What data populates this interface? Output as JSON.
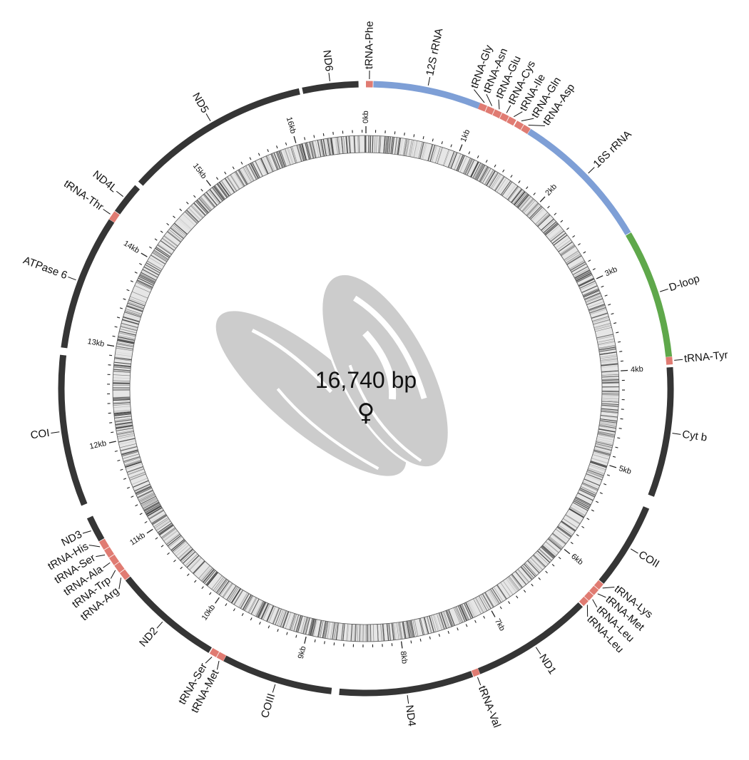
{
  "genome": {
    "length_label": "16,740 bp",
    "length_bp": 16740,
    "sex_symbol": "♀",
    "organism_icon": "mussel-silhouette-icon"
  },
  "colors": {
    "protein": "#353535",
    "rRNA": "#7e9fd6",
    "tRNA": "#e07b72",
    "control": "#5fa84b",
    "silhouette": "#cccccc"
  },
  "kb_ticks": [
    "0kb",
    "1kb",
    "2kb",
    "3kb",
    "4kb",
    "5kb",
    "6kb",
    "7kb",
    "8kb",
    "9kb",
    "10kb",
    "11kb",
    "12kb",
    "13kb",
    "14kb",
    "15kb",
    "16kb"
  ],
  "features": [
    {
      "name": "tRNA-Phe",
      "type": "tRNA",
      "start": 0,
      "end": 60
    },
    {
      "name": "12S rRNA",
      "type": "rRNA",
      "start": 65,
      "end": 1014
    },
    {
      "name": "tRNA-Gly",
      "type": "tRNA",
      "start": 1014,
      "end": 1079
    },
    {
      "name": "tRNA-Asn",
      "type": "tRNA",
      "start": 1084,
      "end": 1149
    },
    {
      "name": "tRNA-Glu",
      "type": "tRNA",
      "start": 1154,
      "end": 1219
    },
    {
      "name": "tRNA-Cys",
      "type": "tRNA",
      "start": 1224,
      "end": 1289
    },
    {
      "name": "tRNA-Ile",
      "type": "tRNA",
      "start": 1294,
      "end": 1359
    },
    {
      "name": "tRNA-Gln",
      "type": "tRNA",
      "start": 1369,
      "end": 1434
    },
    {
      "name": "tRNA-Asp",
      "type": "tRNA",
      "start": 1439,
      "end": 1504
    },
    {
      "name": "16S rRNA",
      "type": "rRNA",
      "start": 1507,
      "end": 2762
    },
    {
      "name": "D-loop",
      "type": "control",
      "start": 2767,
      "end": 3906
    },
    {
      "name": "tRNA-Tyr",
      "type": "tRNA",
      "start": 3908,
      "end": 3975
    },
    {
      "name": "Cyt b",
      "type": "protein",
      "start": 3999,
      "end": 5143
    },
    {
      "name": "COII",
      "type": "protein",
      "start": 5255,
      "end": 6017
    },
    {
      "name": "tRNA-Lys",
      "type": "tRNA",
      "start": 6022,
      "end": 6082
    },
    {
      "name": "tRNA-Met",
      "type": "tRNA",
      "start": 6087,
      "end": 6147
    },
    {
      "name": "tRNA-Leu",
      "type": "tRNA",
      "start": 6152,
      "end": 6212
    },
    {
      "name": "tRNA-Leu",
      "type": "tRNA",
      "start": 6217,
      "end": 6277
    },
    {
      "name": "ND1",
      "type": "protein",
      "start": 6287,
      "end": 7356
    },
    {
      "name": "tRNA-Val",
      "type": "tRNA",
      "start": 7358,
      "end": 7417
    },
    {
      "name": "ND4",
      "type": "protein",
      "start": 7422,
      "end": 8603
    },
    {
      "name": "COIII",
      "type": "protein",
      "start": 8672,
      "end": 9653
    },
    {
      "name": "tRNA-Met",
      "type": "tRNA",
      "start": 9655,
      "end": 9720
    },
    {
      "name": "tRNA-Ser",
      "type": "tRNA",
      "start": 9725,
      "end": 9790
    },
    {
      "name": "ND2",
      "type": "protein",
      "start": 9800,
      "end": 10760
    },
    {
      "name": "tRNA-Arg",
      "type": "tRNA",
      "start": 10765,
      "end": 10840
    },
    {
      "name": "tRNA-Trp",
      "type": "tRNA",
      "start": 10845,
      "end": 10920
    },
    {
      "name": "tRNA-Ala",
      "type": "tRNA",
      "start": 10925,
      "end": 11000
    },
    {
      "name": "tRNA-Ser",
      "type": "tRNA",
      "start": 11005,
      "end": 11080
    },
    {
      "name": "tRNA-His",
      "type": "tRNA",
      "start": 11085,
      "end": 11165
    },
    {
      "name": "ND3",
      "type": "protein",
      "start": 11170,
      "end": 11393
    },
    {
      "name": "COI",
      "type": "protein",
      "start": 11513,
      "end": 12848
    },
    {
      "name": "ATPase 6",
      "type": "protein",
      "start": 12913,
      "end": 14108
    },
    {
      "name": "tRNA-Thr",
      "type": "tRNA",
      "start": 14110,
      "end": 14192
    },
    {
      "name": "ND4L",
      "type": "protein",
      "start": 14197,
      "end": 14480
    },
    {
      "name": "ND5",
      "type": "protein",
      "start": 14522,
      "end": 16154
    },
    {
      "name": "ND6",
      "type": "protein",
      "start": 16182,
      "end": 16675
    }
  ]
}
